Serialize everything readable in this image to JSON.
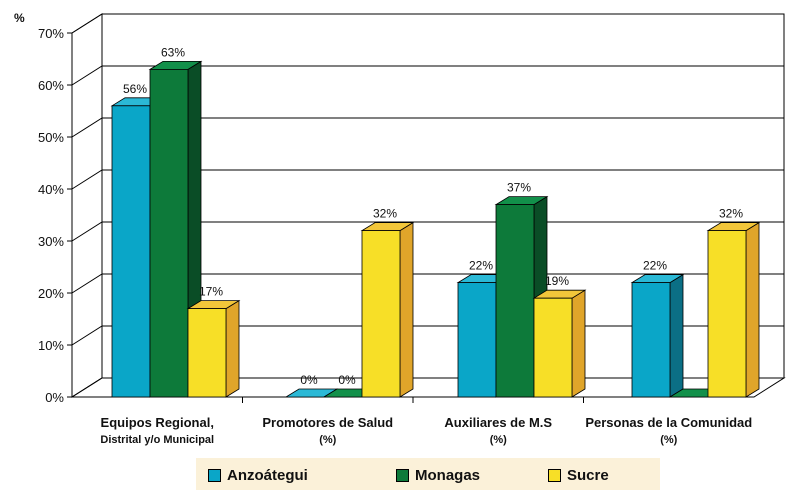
{
  "chart_data": {
    "type": "bar",
    "ylabel": "%",
    "ylim": [
      0,
      70
    ],
    "yticks": [
      "0%",
      "10%",
      "20%",
      "30%",
      "40%",
      "50%",
      "60%",
      "70%"
    ],
    "grid": true,
    "legend_position": "bottom",
    "categories": [
      {
        "line1": "Equipos Regional,",
        "line2": "Distrital y/o Municipal"
      },
      {
        "line1": "Promotores de Salud",
        "line2": "(%)"
      },
      {
        "line1": "Auxiliares de M.S",
        "line2": "(%)"
      },
      {
        "line1": "Personas de la Comunidad",
        "line2": "(%)"
      }
    ],
    "series": [
      {
        "name": "Anzoátegui",
        "values": [
          56,
          0,
          22,
          22
        ],
        "labels": [
          "56%",
          "0%",
          "22%",
          "22%"
        ],
        "color": "#0aa6c8",
        "side": "#0b6f85",
        "top": "#2bb9d6"
      },
      {
        "name": "Monagas",
        "values": [
          63,
          0,
          37,
          0
        ],
        "labels": [
          "63%",
          "0%",
          "37%",
          ""
        ],
        "color": "#0d7a3a",
        "side": "#0a4d26",
        "top": "#12904a"
      },
      {
        "name": "Sucre",
        "values": [
          17,
          32,
          19,
          32
        ],
        "labels": [
          "17%",
          "32%",
          "19%",
          "32%"
        ],
        "color": "#f7df27",
        "side": "#e0a52a",
        "top": "#f2c63a"
      }
    ]
  }
}
